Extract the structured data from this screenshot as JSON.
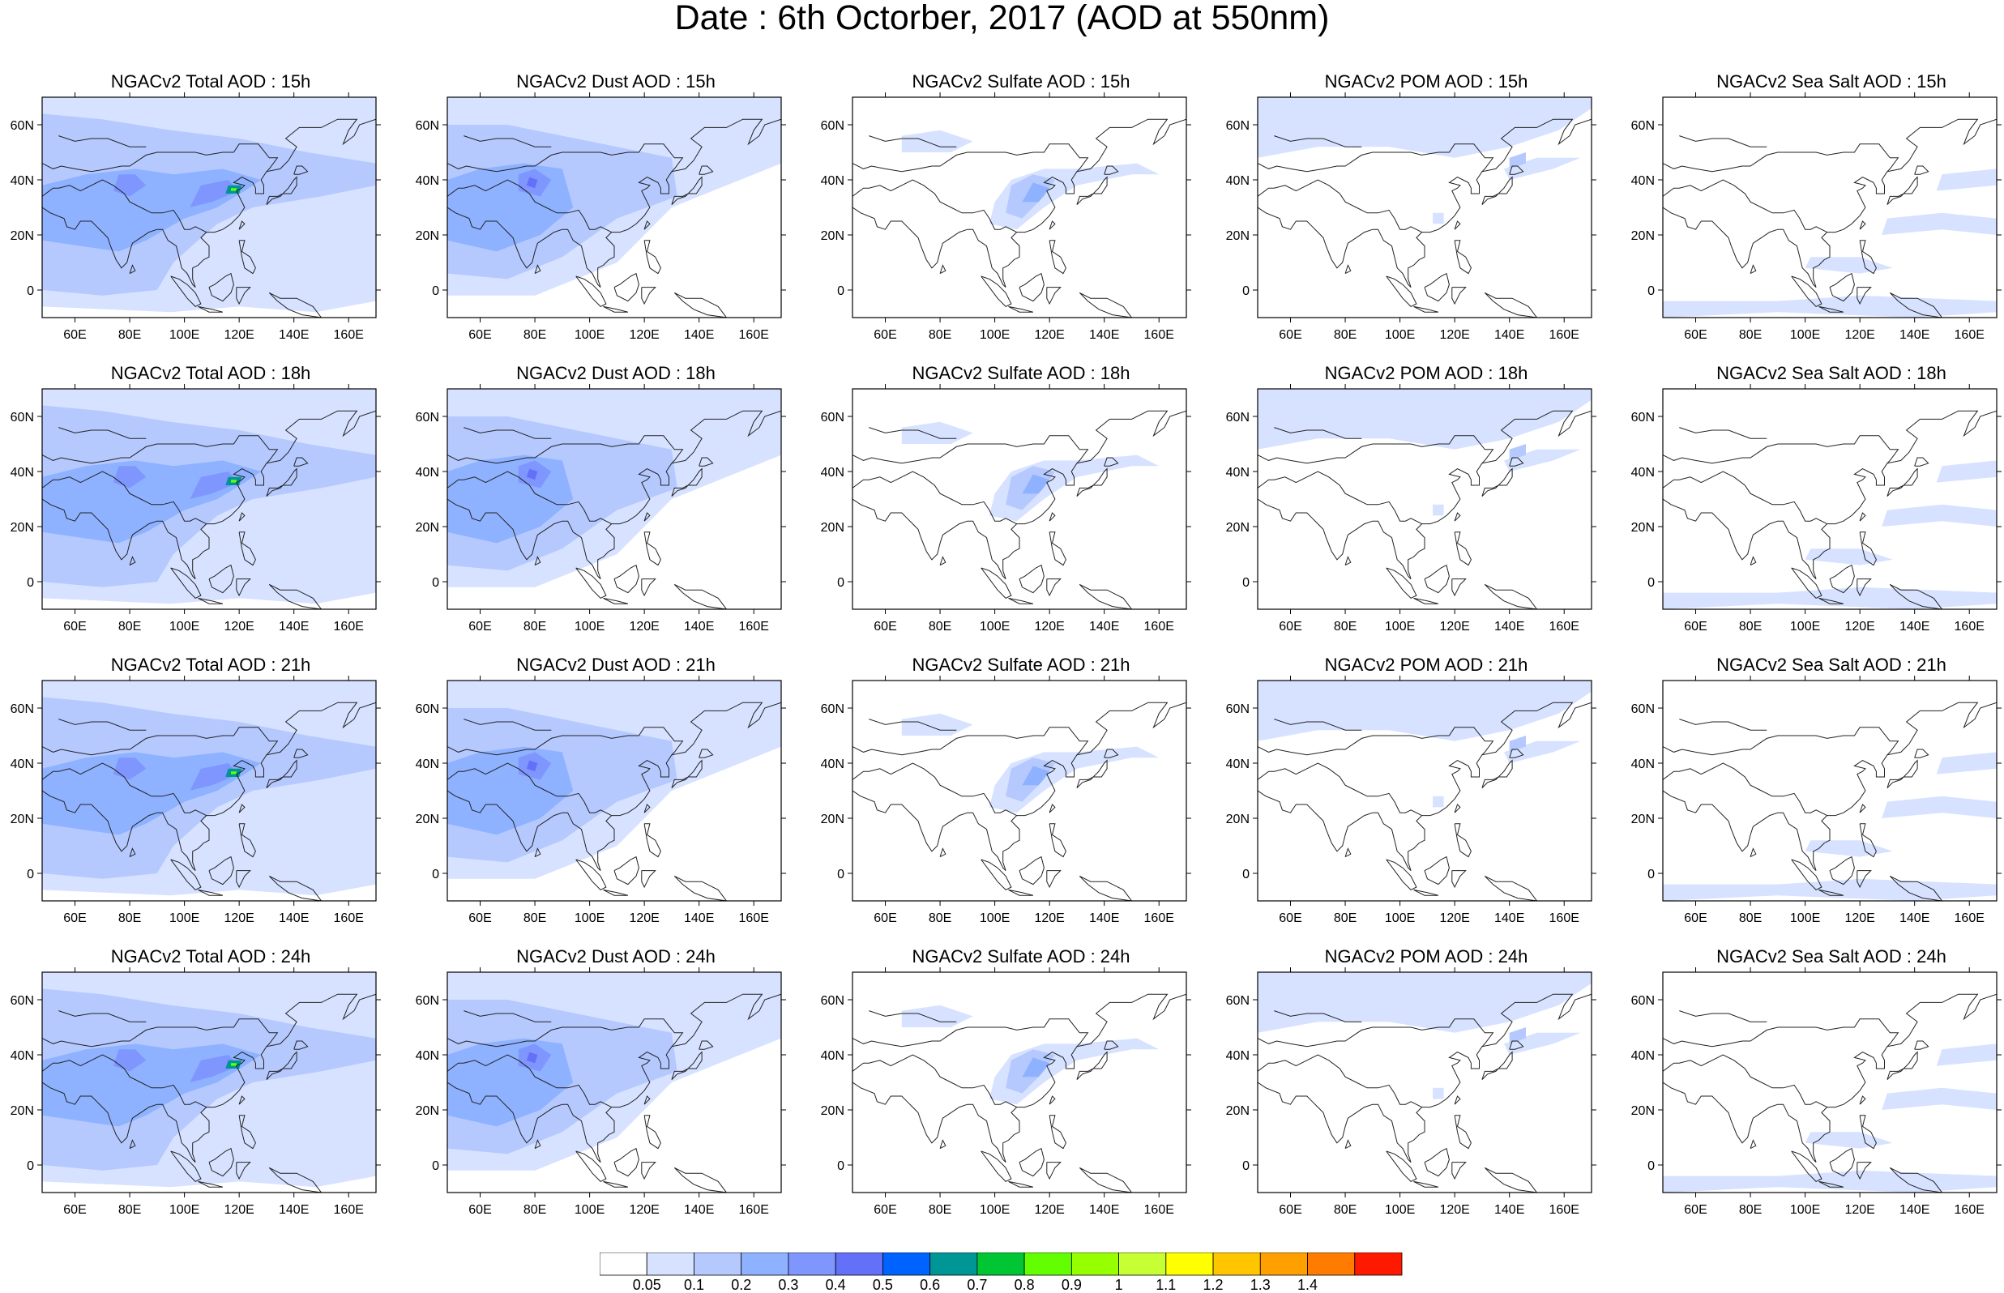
{
  "title": "Date : 6th Octorber, 2017 (AOD at 550nm)",
  "panels": [
    [
      {
        "title": "NGACv2 Total AOD : 15h",
        "species": "total"
      },
      {
        "title": "NGACv2 Dust AOD : 15h",
        "species": "dust"
      },
      {
        "title": "NGACv2 Sulfate AOD : 15h",
        "species": "sulfate"
      },
      {
        "title": "NGACv2 POM AOD : 15h",
        "species": "pom"
      },
      {
        "title": "NGACv2 Sea Salt AOD : 15h",
        "species": "seasalt"
      }
    ],
    [
      {
        "title": "NGACv2 Total AOD : 18h",
        "species": "total"
      },
      {
        "title": "NGACv2 Dust AOD : 18h",
        "species": "dust"
      },
      {
        "title": "NGACv2 Sulfate AOD : 18h",
        "species": "sulfate"
      },
      {
        "title": "NGACv2 POM AOD : 18h",
        "species": "pom"
      },
      {
        "title": "NGACv2 Sea Salt AOD : 18h",
        "species": "seasalt"
      }
    ],
    [
      {
        "title": "NGACv2 Total AOD : 21h",
        "species": "total"
      },
      {
        "title": "NGACv2 Dust AOD : 21h",
        "species": "dust"
      },
      {
        "title": "NGACv2 Sulfate AOD : 21h",
        "species": "sulfate"
      },
      {
        "title": "NGACv2 POM AOD : 21h",
        "species": "pom"
      },
      {
        "title": "NGACv2 Sea Salt AOD : 21h",
        "species": "seasalt"
      }
    ],
    [
      {
        "title": "NGACv2 Total AOD : 24h",
        "species": "total"
      },
      {
        "title": "NGACv2 Dust AOD : 24h",
        "species": "dust"
      },
      {
        "title": "NGACv2 Sulfate AOD : 24h",
        "species": "sulfate"
      },
      {
        "title": "NGACv2 POM AOD : 24h",
        "species": "pom"
      },
      {
        "title": "NGACv2 Sea Salt  AOD : 24h",
        "species": "seasalt"
      }
    ]
  ],
  "map": {
    "lon_range": [
      48,
      170
    ],
    "lat_range": [
      -10,
      70
    ],
    "lon_ticks": [
      "60E",
      "80E",
      "100E",
      "120E",
      "140E",
      "160E"
    ],
    "lon_tick_values": [
      60,
      80,
      100,
      120,
      140,
      160
    ],
    "lat_ticks": [
      "60N",
      "40N",
      "20N",
      "0"
    ],
    "lat_tick_values": [
      60,
      40,
      20,
      0
    ]
  },
  "colorbar": {
    "labels": [
      "0.05",
      "0.1",
      "0.2",
      "0.3",
      "0.4",
      "0.5",
      "0.6",
      "0.7",
      "0.8",
      "0.9",
      "1",
      "1.1",
      "1.2",
      "1.3",
      "1.4"
    ],
    "colors": [
      "#ffffff",
      "#d6e2ff",
      "#b5c9ff",
      "#8eb2ff",
      "#7f96ff",
      "#6370f8",
      "#0063ff",
      "#009696",
      "#00c633",
      "#63ff00",
      "#96ff00",
      "#c6ff33",
      "#ffff00",
      "#ffc600",
      "#ffa000",
      "#ff7c00",
      "#ff1900"
    ]
  }
}
